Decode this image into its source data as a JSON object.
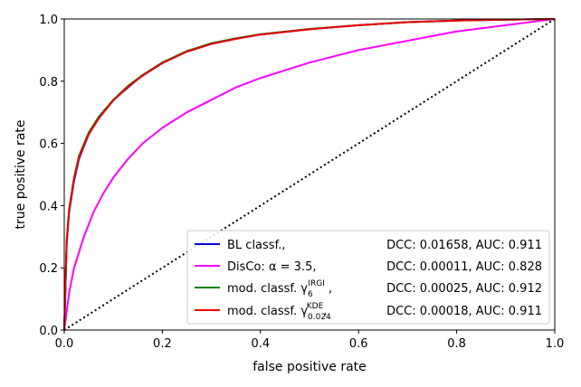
{
  "chart_data": {
    "type": "line",
    "title": "",
    "xlabel": "false positive rate",
    "ylabel": "true positive rate",
    "xlim": [
      0.0,
      1.0
    ],
    "ylim": [
      0.0,
      1.0
    ],
    "xticks": [
      "0.0",
      "0.2",
      "0.4",
      "0.6",
      "0.8",
      "1.0"
    ],
    "yticks": [
      "0.0",
      "0.2",
      "0.4",
      "0.6",
      "0.8",
      "1.0"
    ],
    "grid": false,
    "legend_position": "lower-right",
    "series": [
      {
        "name": "BL classf.",
        "name_parts": {
          "base": "BL classf.,",
          "sup": "",
          "sub": "",
          "tail": ""
        },
        "metrics": "DCC: 0.01658, AUC: 0.911",
        "color": "#0000cc",
        "x": [
          0,
          0.005,
          0.01,
          0.02,
          0.03,
          0.05,
          0.07,
          0.1,
          0.13,
          0.16,
          0.2,
          0.25,
          0.3,
          0.35,
          0.4,
          0.5,
          0.6,
          0.7,
          0.8,
          0.9,
          1.0
        ],
        "y": [
          0,
          0.28,
          0.38,
          0.48,
          0.55,
          0.63,
          0.68,
          0.74,
          0.78,
          0.82,
          0.86,
          0.895,
          0.92,
          0.937,
          0.95,
          0.967,
          0.98,
          0.99,
          0.995,
          0.998,
          1.0
        ]
      },
      {
        "name": "DisCo: α = 3.5",
        "name_parts": {
          "base": "DisCo: α = 3.5,",
          "sup": "",
          "sub": "",
          "tail": ""
        },
        "metrics": "DCC: 0.00011, AUC: 0.828",
        "color": "#ff00ff",
        "x": [
          0,
          0.01,
          0.02,
          0.04,
          0.06,
          0.08,
          0.1,
          0.13,
          0.16,
          0.2,
          0.25,
          0.3,
          0.35,
          0.4,
          0.5,
          0.6,
          0.7,
          0.8,
          0.9,
          0.95,
          1.0
        ],
        "y": [
          0,
          0.12,
          0.2,
          0.3,
          0.38,
          0.44,
          0.49,
          0.55,
          0.6,
          0.65,
          0.7,
          0.74,
          0.78,
          0.81,
          0.86,
          0.9,
          0.93,
          0.96,
          0.98,
          0.99,
          1.0
        ]
      },
      {
        "name": "mod. classf. γ6 IRGI",
        "name_parts": {
          "base": "mod. classf. γ",
          "sup": "IRGI",
          "sub": "6",
          "tail": " ,"
        },
        "metrics": "DCC: 0.00025, AUC: 0.912",
        "color": "#008000",
        "x": [
          0,
          0.005,
          0.01,
          0.02,
          0.03,
          0.05,
          0.07,
          0.1,
          0.13,
          0.16,
          0.2,
          0.25,
          0.3,
          0.35,
          0.4,
          0.5,
          0.6,
          0.7,
          0.8,
          0.9,
          1.0
        ],
        "y": [
          0,
          0.29,
          0.39,
          0.49,
          0.56,
          0.635,
          0.685,
          0.74,
          0.785,
          0.82,
          0.86,
          0.897,
          0.922,
          0.938,
          0.951,
          0.968,
          0.98,
          0.99,
          0.995,
          0.998,
          1.0
        ]
      },
      {
        "name": "mod. classf. γ0.024 KDE",
        "name_parts": {
          "base": "mod. classf. γ",
          "sup": "KDE",
          "sub": "0.024",
          "tail": ","
        },
        "metrics": "DCC: 0.00018, AUC: 0.911",
        "color": "#ee0000",
        "x": [
          0,
          0.005,
          0.01,
          0.02,
          0.03,
          0.05,
          0.07,
          0.1,
          0.13,
          0.16,
          0.2,
          0.25,
          0.3,
          0.35,
          0.4,
          0.5,
          0.6,
          0.7,
          0.8,
          0.9,
          1.0
        ],
        "y": [
          0,
          0.285,
          0.385,
          0.485,
          0.555,
          0.63,
          0.68,
          0.738,
          0.782,
          0.818,
          0.858,
          0.895,
          0.92,
          0.936,
          0.95,
          0.967,
          0.98,
          0.99,
          0.995,
          0.998,
          1.0
        ]
      }
    ],
    "reference_line": {
      "style": "dotted",
      "color": "#000000",
      "x": [
        0,
        1
      ],
      "y": [
        0,
        1
      ]
    }
  }
}
